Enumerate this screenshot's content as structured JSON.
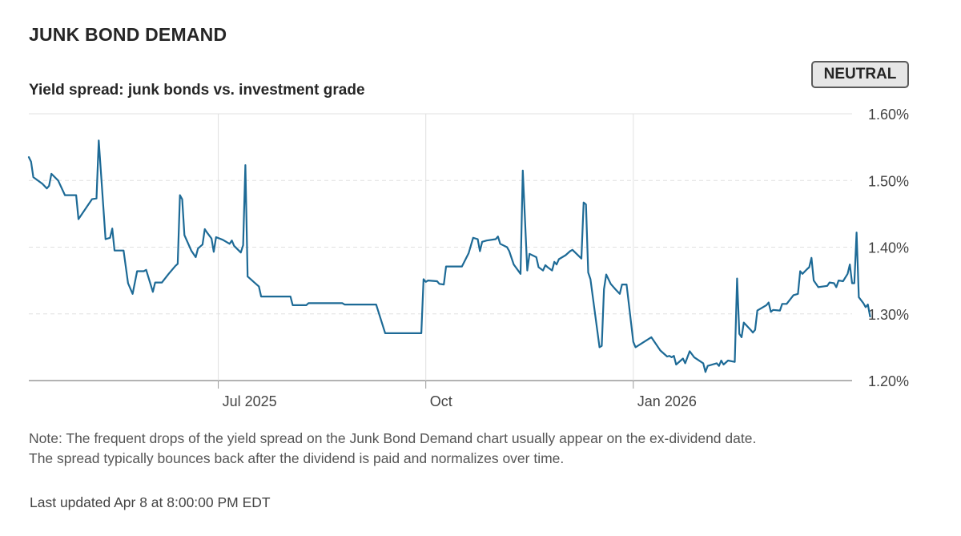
{
  "header": {
    "title": "JUNK BOND DEMAND",
    "subtitle": "Yield spread: junk bonds vs. investment grade",
    "rating": "NEUTRAL"
  },
  "footer": {
    "note_line1": "Note: The frequent drops of the yield spread on the Junk Bond Demand chart usually appear on the ex-dividend date.",
    "note_line2": "The spread typically bounces back after the dividend is paid and normalizes over time.",
    "updated": "Last updated Apr 8 at 8:00:00 PM EDT"
  },
  "colors": {
    "line": "#1d6a96",
    "grid": "#e0e0e0",
    "baseline": "#9a9a9a",
    "text": "#262626",
    "tick_text": "#444444"
  },
  "chart_data": {
    "type": "line",
    "title": "Yield spread: junk bonds vs. investment grade",
    "xlabel": "",
    "ylabel": "",
    "x_range": [
      "2025-04-08",
      "2026-04-08"
    ],
    "ylim": [
      1.2,
      1.6
    ],
    "y_ticks": [
      1.2,
      1.3,
      1.4,
      1.5,
      1.6
    ],
    "y_tick_labels": [
      "1.20%",
      "1.30%",
      "1.40%",
      "1.50%",
      "1.60%"
    ],
    "x_ticks": [
      "2025-07-01",
      "2025-10-01",
      "2026-01-01"
    ],
    "x_tick_labels": [
      "Jul 2025",
      "Oct",
      "Jan 2026"
    ],
    "grid": true,
    "legend": "none",
    "series": [
      {
        "points": [
          [
            "2025-04-08",
            1.535
          ],
          [
            "2025-04-09",
            1.528
          ],
          [
            "2025-04-10",
            1.505
          ],
          [
            "2025-04-14",
            1.495
          ],
          [
            "2025-04-16",
            1.488
          ],
          [
            "2025-04-17",
            1.492
          ],
          [
            "2025-04-18",
            1.51
          ],
          [
            "2025-04-21",
            1.5
          ],
          [
            "2025-04-24",
            1.478
          ],
          [
            "2025-04-29",
            1.478
          ],
          [
            "2025-04-30",
            1.442
          ],
          [
            "2025-05-02",
            1.452
          ],
          [
            "2025-05-06",
            1.472
          ],
          [
            "2025-05-08",
            1.473
          ],
          [
            "2025-05-09",
            1.56
          ],
          [
            "2025-05-12",
            1.412
          ],
          [
            "2025-05-14",
            1.414
          ],
          [
            "2025-05-15",
            1.428
          ],
          [
            "2025-05-16",
            1.395
          ],
          [
            "2025-05-20",
            1.395
          ],
          [
            "2025-05-22",
            1.346
          ],
          [
            "2025-05-24",
            1.33
          ],
          [
            "2025-05-26",
            1.364
          ],
          [
            "2025-05-29",
            1.364
          ],
          [
            "2025-05-30",
            1.366
          ],
          [
            "2025-06-02",
            1.333
          ],
          [
            "2025-06-03",
            1.347
          ],
          [
            "2025-06-06",
            1.347
          ],
          [
            "2025-06-09",
            1.36
          ],
          [
            "2025-06-12",
            1.372
          ],
          [
            "2025-06-13",
            1.375
          ],
          [
            "2025-06-14",
            1.478
          ],
          [
            "2025-06-15",
            1.472
          ],
          [
            "2025-06-16",
            1.418
          ],
          [
            "2025-06-19",
            1.395
          ],
          [
            "2025-06-21",
            1.385
          ],
          [
            "2025-06-22",
            1.398
          ],
          [
            "2025-06-24",
            1.404
          ],
          [
            "2025-06-25",
            1.427
          ],
          [
            "2025-06-26",
            1.422
          ],
          [
            "2025-06-28",
            1.413
          ],
          [
            "2025-06-29",
            1.393
          ],
          [
            "2025-06-30",
            1.415
          ],
          [
            "2025-07-03",
            1.411
          ],
          [
            "2025-07-06",
            1.405
          ],
          [
            "2025-07-07",
            1.41
          ],
          [
            "2025-07-08",
            1.402
          ],
          [
            "2025-07-11",
            1.392
          ],
          [
            "2025-07-12",
            1.403
          ],
          [
            "2025-07-13",
            1.523
          ],
          [
            "2025-07-14",
            1.356
          ],
          [
            "2025-07-17",
            1.347
          ],
          [
            "2025-07-19",
            1.341
          ],
          [
            "2025-07-20",
            1.326
          ],
          [
            "2025-08-02",
            1.326
          ],
          [
            "2025-08-03",
            1.313
          ],
          [
            "2025-08-09",
            1.313
          ],
          [
            "2025-08-10",
            1.316
          ],
          [
            "2025-08-25",
            1.316
          ],
          [
            "2025-08-26",
            1.314
          ],
          [
            "2025-09-09",
            1.314
          ],
          [
            "2025-09-13",
            1.271
          ],
          [
            "2025-09-29",
            1.271
          ],
          [
            "2025-09-30",
            1.352
          ],
          [
            "2025-10-01",
            1.348
          ],
          [
            "2025-10-02",
            1.35
          ],
          [
            "2025-10-06",
            1.349
          ],
          [
            "2025-10-07",
            1.345
          ],
          [
            "2025-10-09",
            1.344
          ],
          [
            "2025-10-10",
            1.371
          ],
          [
            "2025-10-17",
            1.371
          ],
          [
            "2025-10-20",
            1.391
          ],
          [
            "2025-10-22",
            1.414
          ],
          [
            "2025-10-24",
            1.412
          ],
          [
            "2025-10-25",
            1.394
          ],
          [
            "2025-10-26",
            1.408
          ],
          [
            "2025-10-28",
            1.41
          ],
          [
            "2025-11-01",
            1.412
          ],
          [
            "2025-11-02",
            1.416
          ],
          [
            "2025-11-03",
            1.405
          ],
          [
            "2025-11-06",
            1.4
          ],
          [
            "2025-11-07",
            1.394
          ],
          [
            "2025-11-09",
            1.374
          ],
          [
            "2025-11-12",
            1.36
          ],
          [
            "2025-11-13",
            1.515
          ],
          [
            "2025-11-15",
            1.365
          ],
          [
            "2025-11-16",
            1.39
          ],
          [
            "2025-11-19",
            1.385
          ],
          [
            "2025-11-20",
            1.37
          ],
          [
            "2025-11-22",
            1.365
          ],
          [
            "2025-11-23",
            1.373
          ],
          [
            "2025-11-24",
            1.37
          ],
          [
            "2025-11-26",
            1.365
          ],
          [
            "2025-11-27",
            1.378
          ],
          [
            "2025-11-28",
            1.374
          ],
          [
            "2025-11-29",
            1.382
          ],
          [
            "2025-12-02",
            1.388
          ],
          [
            "2025-12-04",
            1.394
          ],
          [
            "2025-12-05",
            1.396
          ],
          [
            "2025-12-09",
            1.383
          ],
          [
            "2025-12-10",
            1.467
          ],
          [
            "2025-12-11",
            1.464
          ],
          [
            "2025-12-12",
            1.362
          ],
          [
            "2025-12-13",
            1.352
          ],
          [
            "2025-12-17",
            1.25
          ],
          [
            "2025-12-18",
            1.252
          ],
          [
            "2025-12-19",
            1.337
          ],
          [
            "2025-12-20",
            1.359
          ],
          [
            "2025-12-22",
            1.345
          ],
          [
            "2025-12-24",
            1.337
          ],
          [
            "2025-12-26",
            1.33
          ],
          [
            "2025-12-27",
            1.344
          ],
          [
            "2025-12-29",
            1.344
          ],
          [
            "2026-01-01",
            1.258
          ],
          [
            "2026-01-02",
            1.25
          ],
          [
            "2026-01-09",
            1.265
          ],
          [
            "2026-01-13",
            1.245
          ],
          [
            "2026-01-15",
            1.239
          ],
          [
            "2026-01-16",
            1.236
          ],
          [
            "2026-01-17",
            1.237
          ],
          [
            "2026-01-18",
            1.235
          ],
          [
            "2026-01-19",
            1.237
          ],
          [
            "2026-01-20",
            1.224
          ],
          [
            "2026-01-23",
            1.233
          ],
          [
            "2026-01-24",
            1.226
          ],
          [
            "2026-01-26",
            1.244
          ],
          [
            "2026-01-28",
            1.235
          ],
          [
            "2026-02-01",
            1.226
          ],
          [
            "2026-02-02",
            1.213
          ],
          [
            "2026-02-03",
            1.222
          ],
          [
            "2026-02-07",
            1.226
          ],
          [
            "2026-02-08",
            1.222
          ],
          [
            "2026-02-09",
            1.23
          ],
          [
            "2026-02-10",
            1.224
          ],
          [
            "2026-02-12",
            1.23
          ],
          [
            "2026-02-15",
            1.228
          ],
          [
            "2026-02-16",
            1.353
          ],
          [
            "2026-02-17",
            1.27
          ],
          [
            "2026-02-18",
            1.265
          ],
          [
            "2026-02-19",
            1.287
          ],
          [
            "2026-02-22",
            1.276
          ],
          [
            "2026-02-23",
            1.272
          ],
          [
            "2026-02-24",
            1.276
          ],
          [
            "2026-02-25",
            1.305
          ],
          [
            "2026-03-01",
            1.313
          ],
          [
            "2026-03-02",
            1.317
          ],
          [
            "2026-03-03",
            1.303
          ],
          [
            "2026-03-04",
            1.306
          ],
          [
            "2026-03-07",
            1.305
          ],
          [
            "2026-03-08",
            1.315
          ],
          [
            "2026-03-10",
            1.315
          ],
          [
            "2026-03-13",
            1.328
          ],
          [
            "2026-03-15",
            1.33
          ],
          [
            "2026-03-16",
            1.364
          ],
          [
            "2026-03-17",
            1.36
          ],
          [
            "2026-03-19",
            1.367
          ],
          [
            "2026-03-20",
            1.37
          ],
          [
            "2026-03-21",
            1.384
          ],
          [
            "2026-03-22",
            1.35
          ],
          [
            "2026-03-24",
            1.34
          ],
          [
            "2026-03-28",
            1.342
          ],
          [
            "2026-03-29",
            1.347
          ],
          [
            "2026-03-31",
            1.346
          ],
          [
            "2026-04-01",
            1.34
          ],
          [
            "2026-04-02",
            1.35
          ],
          [
            "2026-04-04",
            1.349
          ],
          [
            "2026-04-06",
            1.36
          ],
          [
            "2026-04-07",
            1.374
          ],
          [
            "2026-04-08",
            1.346
          ],
          [
            "2026-04-09",
            1.346
          ],
          [
            "2026-04-10",
            1.422
          ],
          [
            "2026-04-11",
            1.325
          ],
          [
            "2026-04-13",
            1.316
          ],
          [
            "2026-04-14",
            1.31
          ],
          [
            "2026-04-15",
            1.314
          ],
          [
            "2026-04-16",
            1.296
          ]
        ]
      }
    ]
  }
}
